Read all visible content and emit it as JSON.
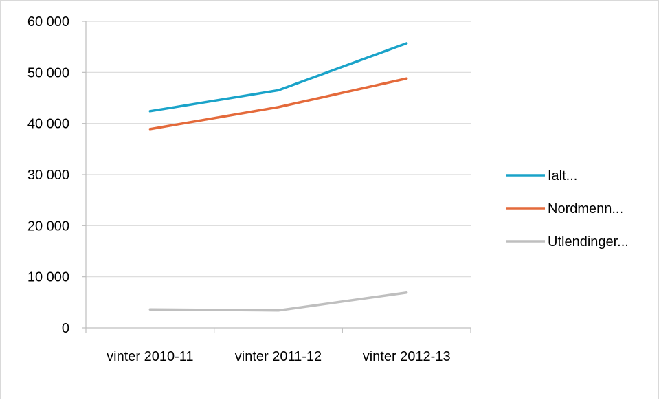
{
  "chart_data": {
    "type": "line",
    "title": "",
    "xlabel": "",
    "ylabel": "",
    "categories": [
      "vinter 2010-11",
      "vinter 2011-12",
      "vinter 2012-13"
    ],
    "ylim": [
      0,
      60000
    ],
    "yticks": [
      0,
      10000,
      20000,
      30000,
      40000,
      50000,
      60000
    ],
    "ytick_labels": [
      "0",
      "10 000",
      "20 000",
      "30 000",
      "40 000",
      "50 000",
      "60 000"
    ],
    "grid": true,
    "legend_position": "right",
    "series": [
      {
        "name": "Ialt...",
        "color": "#1aa3c9",
        "values": [
          42400,
          46500,
          55700
        ]
      },
      {
        "name": "Nordmenn...",
        "color": "#e46a3b",
        "values": [
          38900,
          43200,
          48800
        ]
      },
      {
        "name": "Utlendinger...",
        "color": "#bfbfbf",
        "values": [
          3600,
          3400,
          6900
        ]
      }
    ]
  }
}
